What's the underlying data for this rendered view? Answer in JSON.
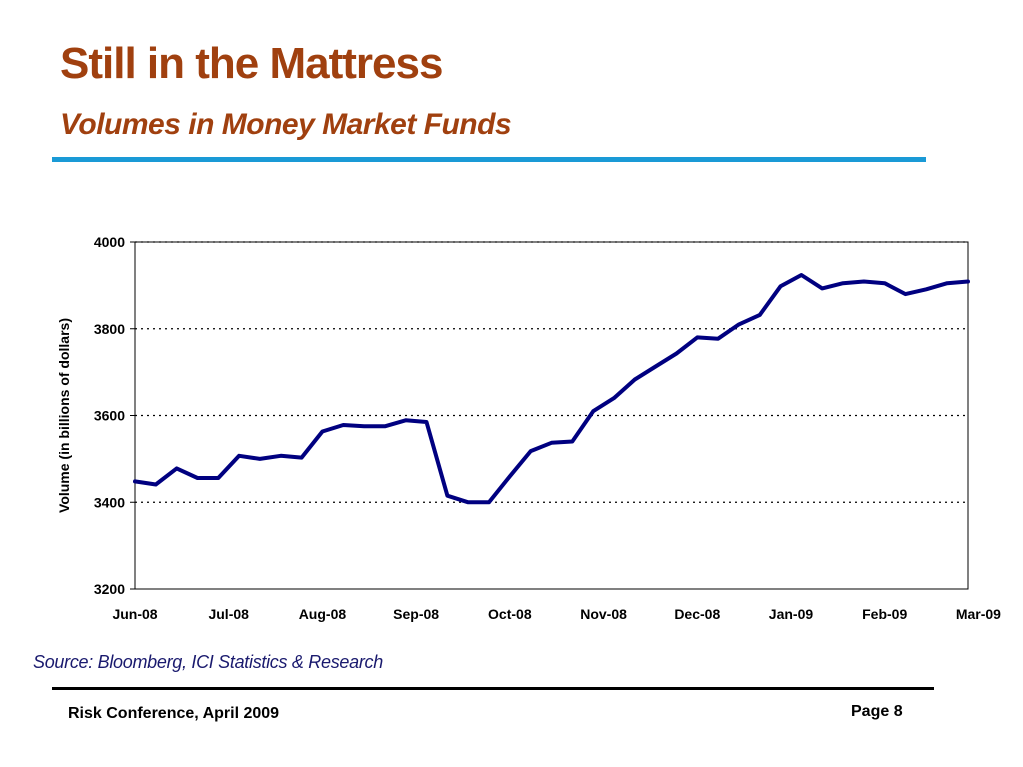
{
  "slide": {
    "title": "Still in the Mattress",
    "subtitle": "Volumes in Money Market Funds",
    "source": "Source: Bloomberg, ICI Statistics & Research",
    "footer_left": "Risk Conference, April 2009",
    "footer_right": "Page 8"
  },
  "colors": {
    "title": "#a0400f",
    "title_rule": "#1a9ad6",
    "line": "#000080",
    "source": "#1a1a6e"
  },
  "chart_data": {
    "type": "line",
    "title": "",
    "xlabel": "",
    "ylabel": "Volume (in billions of dollars)",
    "ylim": [
      3200,
      4000
    ],
    "yticks": [
      3200,
      3400,
      3600,
      3800,
      4000
    ],
    "ytick_labels": [
      "3200",
      "3400",
      "3600",
      "3800",
      "4000"
    ],
    "gridlines": "horizontal dotted",
    "legend": "none",
    "xtick_labels": [
      "Jun-08",
      "Jul-08",
      "Aug-08",
      "Sep-08",
      "Oct-08",
      "Nov-08",
      "Dec-08",
      "Jan-09",
      "Feb-09",
      "Mar-09"
    ],
    "xtick_index": [
      0,
      4.5,
      9,
      13.5,
      18,
      22.5,
      27,
      31.5,
      36,
      40.5
    ],
    "series": [
      {
        "values": [
          3448,
          3441,
          3478,
          3456,
          3456,
          3507,
          3500,
          3507,
          3503,
          3563,
          3578,
          3575,
          3575,
          3589,
          3585,
          3415,
          3400,
          3400,
          3460,
          3518,
          3537,
          3540,
          3610,
          3640,
          3683,
          3713,
          3743,
          3780,
          3777,
          3810,
          3832,
          3898,
          3924,
          3893,
          3905,
          3909,
          3905,
          3880,
          3891,
          3905,
          3909
        ]
      }
    ]
  }
}
